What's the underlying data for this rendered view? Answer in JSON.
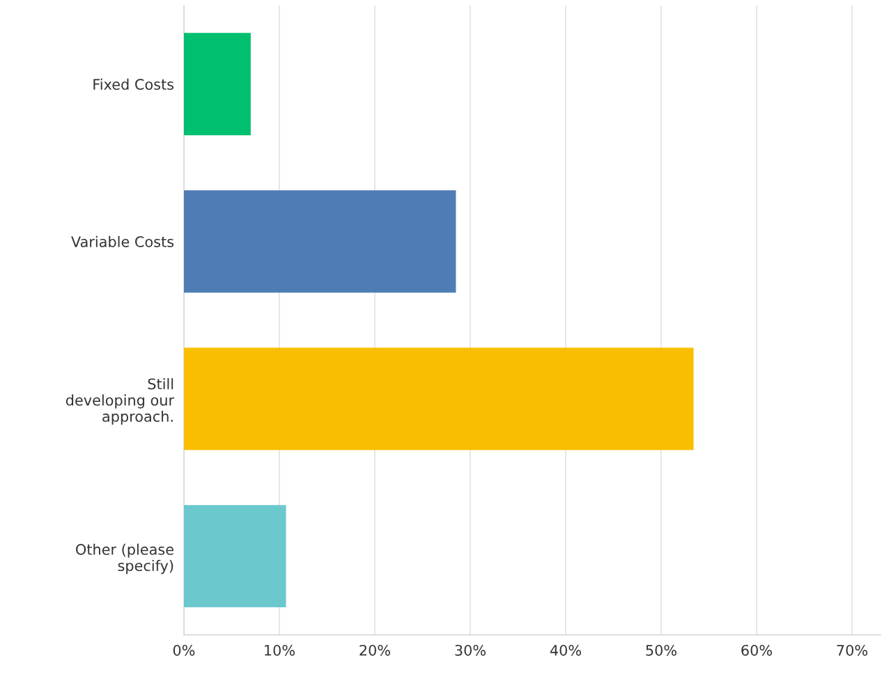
{
  "chart_data": {
    "type": "bar",
    "orientation": "horizontal",
    "categories": [
      "Fixed Costs",
      "Variable Costs",
      "Still\ndeveloping our\napproach.",
      "Other (please\nspecify)"
    ],
    "values": [
      7.0,
      28.5,
      53.4,
      10.7
    ],
    "colors": [
      "#00bf6f",
      "#507cb6",
      "#f9be00",
      "#6bc8cd"
    ],
    "xlim": [
      0,
      73
    ],
    "xticks": [
      {
        "value": 0,
        "label": "0%"
      },
      {
        "value": 10,
        "label": "10%"
      },
      {
        "value": 20,
        "label": "20%"
      },
      {
        "value": 30,
        "label": "30%"
      },
      {
        "value": 40,
        "label": "40%"
      },
      {
        "value": 50,
        "label": "50%"
      },
      {
        "value": 60,
        "label": "60%"
      },
      {
        "value": 70,
        "label": "70%"
      }
    ],
    "grid": "x",
    "legend": false
  }
}
